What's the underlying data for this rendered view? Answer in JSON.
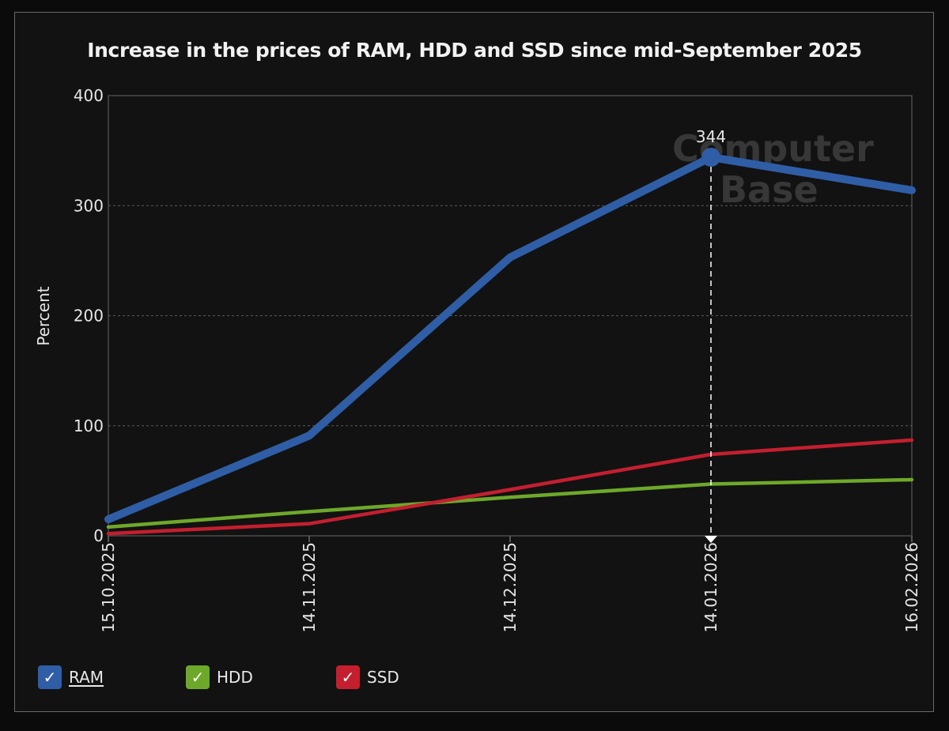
{
  "title": "Increase in the prices of RAM, HDD and SSD since mid-September 2025",
  "watermark": {
    "line1": "Computer",
    "line2": "Base"
  },
  "tooltip": {
    "label": "344"
  },
  "legend": [
    {
      "name": "RAM",
      "color": "#2f5ea6",
      "checked": true,
      "check_glyph": "✓"
    },
    {
      "name": "HDD",
      "color": "#6ea82a",
      "checked": true,
      "check_glyph": "✓"
    },
    {
      "name": "SSD",
      "color": "#c41f2f",
      "checked": true,
      "check_glyph": "✓"
    }
  ],
  "chart_data": {
    "type": "line",
    "title": "Increase in the prices of RAM, HDD and SSD since mid-September 2025",
    "xlabel": "",
    "ylabel": "Percent",
    "x": [
      "15.10.2025",
      "14.11.2025",
      "14.12.2025",
      "14.01.2026",
      "16.02.2026"
    ],
    "ylim": [
      0,
      400
    ],
    "yticks": [
      0,
      100,
      200,
      300,
      400
    ],
    "grid": true,
    "legend_position": "bottom-left",
    "highlight": {
      "series": "RAM",
      "x": "14.01.2026",
      "value": 344
    },
    "series": [
      {
        "name": "RAM",
        "color": "#2f5ea6",
        "values": [
          15,
          91,
          253,
          344,
          314
        ]
      },
      {
        "name": "HDD",
        "color": "#6ea82a",
        "values": [
          8,
          22,
          35,
          47,
          51
        ]
      },
      {
        "name": "SSD",
        "color": "#c41f2f",
        "values": [
          2,
          11,
          42,
          74,
          87
        ]
      }
    ]
  }
}
